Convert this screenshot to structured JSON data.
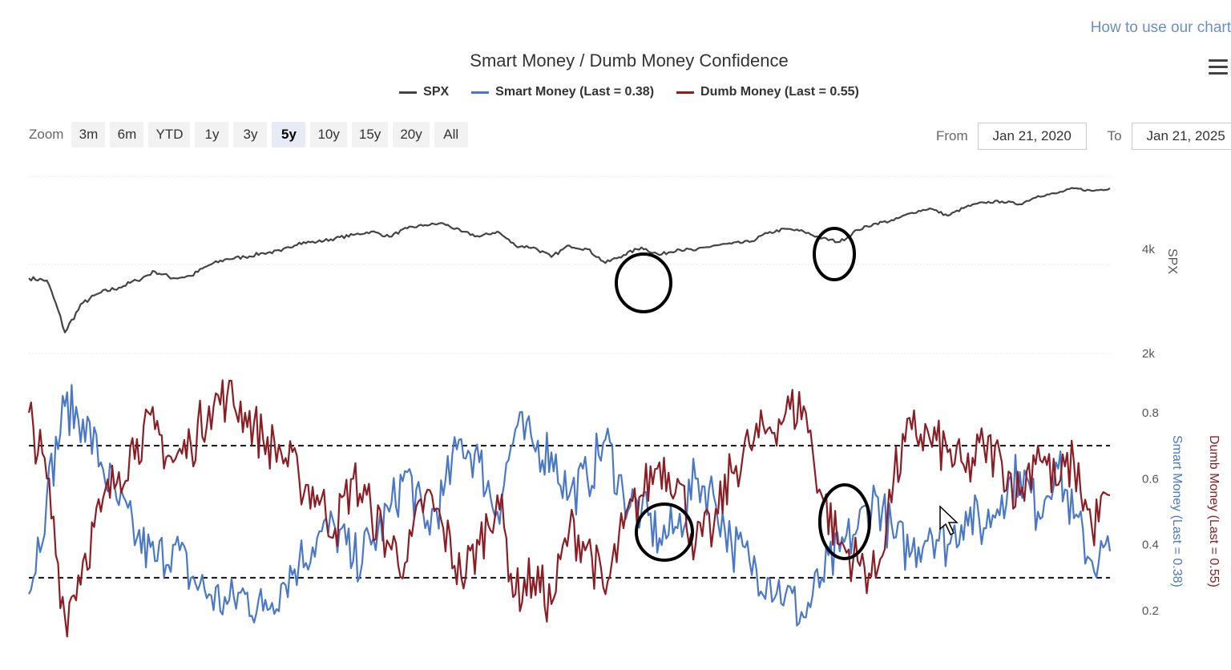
{
  "header": {
    "help_link": "How to use our chart",
    "menu_icon": "hamburger-menu-icon"
  },
  "toolbar": {
    "zoom_label": "Zoom",
    "zoom_options": [
      "3m",
      "6m",
      "YTD",
      "1y",
      "3y",
      "5y",
      "10y",
      "15y",
      "20y",
      "All"
    ],
    "zoom_active": "5y",
    "from_label": "From",
    "from_value": "Jan 21, 2020",
    "to_label": "To",
    "to_value": "Jan 21, 2025"
  },
  "chart_data": {
    "type": "line",
    "title": "Smart Money / Dumb Money Confidence",
    "x_range": [
      "2020-01-21",
      "2025-01-21"
    ],
    "legend": [
      {
        "name": "SPX",
        "color": "#444444"
      },
      {
        "name": "Smart Money (Last = 0.38)",
        "color": "#4a78c8"
      },
      {
        "name": "Dumb Money (Last = 0.55)",
        "color": "#8b1e24"
      }
    ],
    "legend_placement": "top-center",
    "panels": [
      {
        "name": "spx-panel",
        "ylabel": "SPX",
        "y_axis": "right",
        "y_scale": "log",
        "yticks": [
          "2k",
          "4k"
        ],
        "ylim": [
          2000,
          6500
        ],
        "series": [
          {
            "name": "SPX",
            "color": "#444444",
            "x": [
              "2020-01",
              "2020-02",
              "2020-03",
              "2020-04",
              "2020-05",
              "2020-06",
              "2020-07",
              "2020-08",
              "2020-09",
              "2020-10",
              "2020-11",
              "2020-12",
              "2021-01",
              "2021-02",
              "2021-03",
              "2021-04",
              "2021-05",
              "2021-06",
              "2021-07",
              "2021-08",
              "2021-09",
              "2021-10",
              "2021-11",
              "2021-12",
              "2022-01",
              "2022-02",
              "2022-03",
              "2022-04",
              "2022-05",
              "2022-06",
              "2022-07",
              "2022-08",
              "2022-09",
              "2022-10",
              "2022-11",
              "2022-12",
              "2023-01",
              "2023-02",
              "2023-03",
              "2023-04",
              "2023-05",
              "2023-06",
              "2023-07",
              "2023-08",
              "2023-09",
              "2023-10",
              "2023-11",
              "2023-12",
              "2024-01",
              "2024-02",
              "2024-03",
              "2024-04",
              "2024-05",
              "2024-06",
              "2024-07",
              "2024-08",
              "2024-09",
              "2024-10",
              "2024-11",
              "2024-12",
              "2025-01"
            ],
            "values": [
              3300,
              3250,
              2300,
              2800,
              3000,
              3100,
              3250,
              3450,
              3300,
              3350,
              3600,
              3750,
              3800,
              3900,
              3950,
              4180,
              4200,
              4300,
              4400,
              4500,
              4350,
              4600,
              4700,
              4750,
              4500,
              4350,
              4500,
              4100,
              4050,
              3800,
              4100,
              4000,
              3650,
              3850,
              4050,
              3850,
              4000,
              3970,
              4100,
              4150,
              4200,
              4450,
              4580,
              4500,
              4300,
              4200,
              4550,
              4750,
              4850,
              5100,
              5250,
              5000,
              5300,
              5460,
              5500,
              5400,
              5700,
              5800,
              6000,
              5900,
              6000
            ]
          }
        ]
      },
      {
        "name": "confidence-panel",
        "ylabel_left": "Smart Money (Last = 0.38)",
        "ylabel_right": "Dumb Money (Last = 0.55)",
        "yticks": [
          0.2,
          0.4,
          0.6,
          0.8
        ],
        "ylim": [
          0.15,
          0.9
        ],
        "reference_lines": [
          0.7,
          0.3
        ],
        "series": [
          {
            "name": "Smart Money",
            "color": "#4a78c8",
            "x": [
              "2020-01",
              "2020-02",
              "2020-03",
              "2020-04",
              "2020-05",
              "2020-06",
              "2020-07",
              "2020-08",
              "2020-09",
              "2020-10",
              "2020-11",
              "2020-12",
              "2021-01",
              "2021-02",
              "2021-03",
              "2021-04",
              "2021-05",
              "2021-06",
              "2021-07",
              "2021-08",
              "2021-09",
              "2021-10",
              "2021-11",
              "2021-12",
              "2022-01",
              "2022-02",
              "2022-03",
              "2022-04",
              "2022-05",
              "2022-06",
              "2022-07",
              "2022-08",
              "2022-09",
              "2022-10",
              "2022-11",
              "2022-12",
              "2023-01",
              "2023-02",
              "2023-03",
              "2023-04",
              "2023-05",
              "2023-06",
              "2023-07",
              "2023-08",
              "2023-09",
              "2023-10",
              "2023-11",
              "2023-12",
              "2024-01",
              "2024-02",
              "2024-03",
              "2024-04",
              "2024-05",
              "2024-06",
              "2024-07",
              "2024-08",
              "2024-09",
              "2024-10",
              "2024-11",
              "2024-12",
              "2025-01"
            ],
            "values": [
              0.25,
              0.55,
              0.82,
              0.78,
              0.65,
              0.52,
              0.42,
              0.35,
              0.4,
              0.3,
              0.25,
              0.22,
              0.25,
              0.2,
              0.28,
              0.35,
              0.42,
              0.45,
              0.35,
              0.4,
              0.5,
              0.62,
              0.45,
              0.55,
              0.72,
              0.65,
              0.5,
              0.75,
              0.7,
              0.68,
              0.55,
              0.6,
              0.72,
              0.55,
              0.5,
              0.42,
              0.45,
              0.6,
              0.55,
              0.4,
              0.35,
              0.3,
              0.25,
              0.18,
              0.3,
              0.38,
              0.45,
              0.55,
              0.42,
              0.38,
              0.45,
              0.4,
              0.5,
              0.45,
              0.55,
              0.62,
              0.5,
              0.65,
              0.48,
              0.35,
              0.38
            ]
          },
          {
            "name": "Dumb Money",
            "color": "#8b1e24",
            "x": [
              "2020-01",
              "2020-02",
              "2020-03",
              "2020-04",
              "2020-05",
              "2020-06",
              "2020-07",
              "2020-08",
              "2020-09",
              "2020-10",
              "2020-11",
              "2020-12",
              "2021-01",
              "2021-02",
              "2021-03",
              "2021-04",
              "2021-05",
              "2021-06",
              "2021-07",
              "2021-08",
              "2021-09",
              "2021-10",
              "2021-11",
              "2021-12",
              "2022-01",
              "2022-02",
              "2022-03",
              "2022-04",
              "2022-05",
              "2022-06",
              "2022-07",
              "2022-08",
              "2022-09",
              "2022-10",
              "2022-11",
              "2022-12",
              "2023-01",
              "2023-02",
              "2023-03",
              "2023-04",
              "2023-05",
              "2023-06",
              "2023-07",
              "2023-08",
              "2023-09",
              "2023-10",
              "2023-11",
              "2023-12",
              "2024-01",
              "2024-02",
              "2024-03",
              "2024-04",
              "2024-05",
              "2024-06",
              "2024-07",
              "2024-08",
              "2024-09",
              "2024-10",
              "2024-11",
              "2024-12",
              "2025-01"
            ],
            "values": [
              0.8,
              0.6,
              0.18,
              0.35,
              0.5,
              0.62,
              0.72,
              0.75,
              0.65,
              0.7,
              0.82,
              0.85,
              0.8,
              0.72,
              0.68,
              0.6,
              0.55,
              0.45,
              0.6,
              0.5,
              0.4,
              0.35,
              0.55,
              0.45,
              0.3,
              0.4,
              0.55,
              0.25,
              0.3,
              0.22,
              0.45,
              0.4,
              0.25,
              0.45,
              0.55,
              0.65,
              0.6,
              0.4,
              0.45,
              0.62,
              0.7,
              0.75,
              0.8,
              0.82,
              0.55,
              0.4,
              0.35,
              0.3,
              0.6,
              0.75,
              0.72,
              0.68,
              0.62,
              0.7,
              0.65,
              0.55,
              0.7,
              0.58,
              0.65,
              0.45,
              0.55
            ]
          }
        ]
      }
    ]
  }
}
